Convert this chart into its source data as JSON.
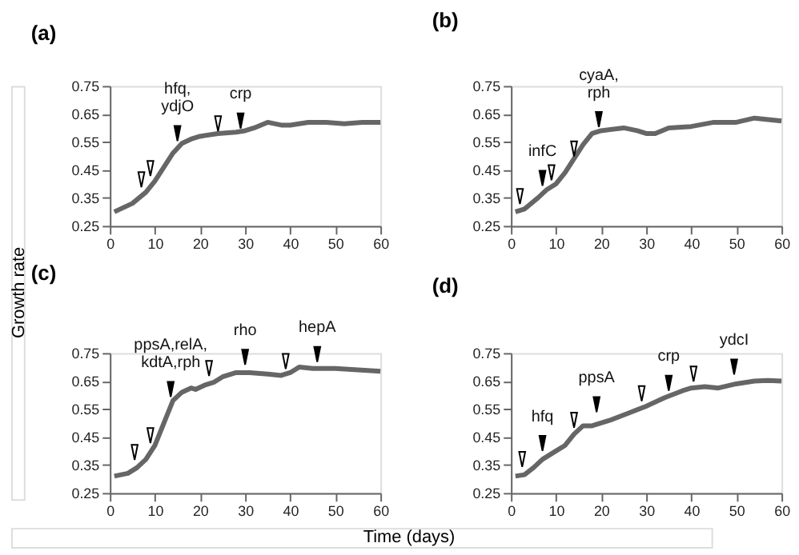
{
  "chart_data": [
    {
      "type": "line",
      "title": "(a)",
      "xlim": [
        0,
        60
      ],
      "ylim": [
        0.25,
        0.75
      ],
      "xticks": [
        0,
        10,
        20,
        30,
        40,
        50,
        60
      ],
      "yticks": [
        0.25,
        0.35,
        0.45,
        0.55,
        0.65,
        0.75
      ],
      "grid": false,
      "series": [
        {
          "color": "#666666",
          "line_style": "solid",
          "x": [
            1,
            5,
            8,
            10,
            12,
            14,
            16,
            18,
            20,
            24,
            28,
            30,
            32,
            35,
            38,
            40,
            44,
            48,
            52,
            56,
            60
          ],
          "values": [
            0.3,
            0.33,
            0.37,
            0.41,
            0.46,
            0.51,
            0.545,
            0.56,
            0.57,
            0.58,
            0.585,
            0.59,
            0.6,
            0.62,
            0.61,
            0.61,
            0.62,
            0.62,
            0.615,
            0.62,
            0.62
          ]
        },
        {
          "type": "scatter",
          "marker": "triangle",
          "color": "#000000",
          "x": [
            15,
            29
          ],
          "values": [
            0.58,
            0.625
          ]
        },
        {
          "type": "scatter",
          "marker": "triangle",
          "color": "#ffffff",
          "x": [
            7,
            9,
            24
          ],
          "values": [
            0.415,
            0.455,
            0.615
          ]
        }
      ],
      "annotations": [
        {
          "text": "hfq,\nydjO",
          "x": 15,
          "y": 0.58
        },
        {
          "text": "crp",
          "x": 29,
          "y": 0.625
        }
      ]
    },
    {
      "type": "line",
      "title": "(b)",
      "xlim": [
        0,
        60
      ],
      "ylim": [
        0.25,
        0.75
      ],
      "xticks": [
        0,
        10,
        20,
        30,
        40,
        50,
        60
      ],
      "yticks": [
        0.25,
        0.35,
        0.45,
        0.55,
        0.65,
        0.75
      ],
      "grid": false,
      "series": [
        {
          "color": "#666666",
          "line_style": "solid",
          "x": [
            1,
            3,
            6,
            8,
            10,
            12,
            14,
            16,
            18,
            20,
            25,
            28,
            30,
            32,
            35,
            40,
            45,
            50,
            54,
            57,
            60
          ],
          "values": [
            0.3,
            0.31,
            0.35,
            0.38,
            0.4,
            0.44,
            0.49,
            0.54,
            0.58,
            0.59,
            0.6,
            0.59,
            0.58,
            0.58,
            0.6,
            0.605,
            0.62,
            0.62,
            0.635,
            0.63,
            0.625
          ]
        },
        {
          "type": "scatter",
          "marker": "triangle",
          "color": "#000000",
          "x": [
            7,
            19.5
          ],
          "values": [
            0.42,
            0.63
          ]
        },
        {
          "type": "scatter",
          "marker": "triangle",
          "color": "#ffffff",
          "x": [
            2,
            9,
            14
          ],
          "values": [
            0.355,
            0.44,
            0.525
          ]
        }
      ],
      "annotations": [
        {
          "text": "infC",
          "x": 7,
          "y": 0.42
        },
        {
          "text": "cyaA,\nrph",
          "x": 19.5,
          "y": 0.63
        }
      ]
    },
    {
      "type": "line",
      "title": "(c)",
      "xlabel": "Time (days)",
      "ylabel": "Growth rate",
      "xlim": [
        0,
        60
      ],
      "ylim": [
        0.25,
        0.75
      ],
      "xticks": [
        0,
        10,
        20,
        30,
        40,
        50,
        60
      ],
      "yticks": [
        0.25,
        0.35,
        0.45,
        0.55,
        0.65,
        0.75
      ],
      "grid": false,
      "series": [
        {
          "color": "#666666",
          "line_style": "solid",
          "x": [
            1,
            4,
            6,
            8,
            10,
            12,
            14,
            16,
            18,
            19,
            21,
            23,
            25,
            28,
            31,
            35,
            38,
            40,
            42,
            45,
            50,
            55,
            60
          ],
          "values": [
            0.31,
            0.32,
            0.34,
            0.37,
            0.42,
            0.5,
            0.58,
            0.61,
            0.625,
            0.62,
            0.635,
            0.645,
            0.665,
            0.68,
            0.68,
            0.675,
            0.67,
            0.68,
            0.7,
            0.695,
            0.695,
            0.69,
            0.685
          ]
        },
        {
          "type": "scatter",
          "marker": "triangle",
          "color": "#000000",
          "x": [
            13.5,
            30,
            46
          ],
          "values": [
            0.62,
            0.735,
            0.745
          ]
        },
        {
          "type": "scatter",
          "marker": "triangle",
          "color": "#ffffff",
          "x": [
            5.5,
            9,
            22,
            39
          ],
          "values": [
            0.395,
            0.455,
            0.695,
            0.72
          ]
        }
      ],
      "annotations": [
        {
          "text": "ppsA,relA,\nkdtA,rph",
          "x": 13.5,
          "y": 0.62
        },
        {
          "text": "rho",
          "x": 30,
          "y": 0.735
        },
        {
          "text": "hepA",
          "x": 46,
          "y": 0.745
        }
      ]
    },
    {
      "type": "line",
      "title": "(d)",
      "xlim": [
        0,
        60
      ],
      "ylim": [
        0.25,
        0.75
      ],
      "xticks": [
        0,
        10,
        20,
        30,
        40,
        50,
        60
      ],
      "yticks": [
        0.25,
        0.35,
        0.45,
        0.55,
        0.65,
        0.75
      ],
      "grid": false,
      "series": [
        {
          "color": "#666666",
          "line_style": "solid",
          "x": [
            1,
            3,
            5,
            7,
            10,
            12,
            14,
            16,
            18,
            20,
            22,
            26,
            30,
            34,
            38,
            40,
            43,
            46,
            50,
            54,
            57,
            60
          ],
          "values": [
            0.31,
            0.315,
            0.34,
            0.37,
            0.4,
            0.42,
            0.46,
            0.49,
            0.49,
            0.5,
            0.51,
            0.535,
            0.56,
            0.59,
            0.615,
            0.625,
            0.63,
            0.625,
            0.64,
            0.65,
            0.652,
            0.65
          ]
        },
        {
          "type": "scatter",
          "marker": "triangle",
          "color": "#000000",
          "x": [
            7,
            19,
            35,
            49.5
          ],
          "values": [
            0.427,
            0.566,
            0.642,
            0.7
          ]
        },
        {
          "type": "scatter",
          "marker": "triangle",
          "color": "#ffffff",
          "x": [
            2.5,
            14,
            29,
            40.5
          ],
          "values": [
            0.37,
            0.51,
            0.605,
            0.675
          ]
        }
      ],
      "annotations": [
        {
          "text": "hfq",
          "x": 7,
          "y": 0.427
        },
        {
          "text": "ppsA",
          "x": 19,
          "y": 0.566
        },
        {
          "text": "crp",
          "x": 35,
          "y": 0.642
        },
        {
          "text": "ydcI",
          "x": 49.5,
          "y": 0.7
        }
      ]
    }
  ]
}
